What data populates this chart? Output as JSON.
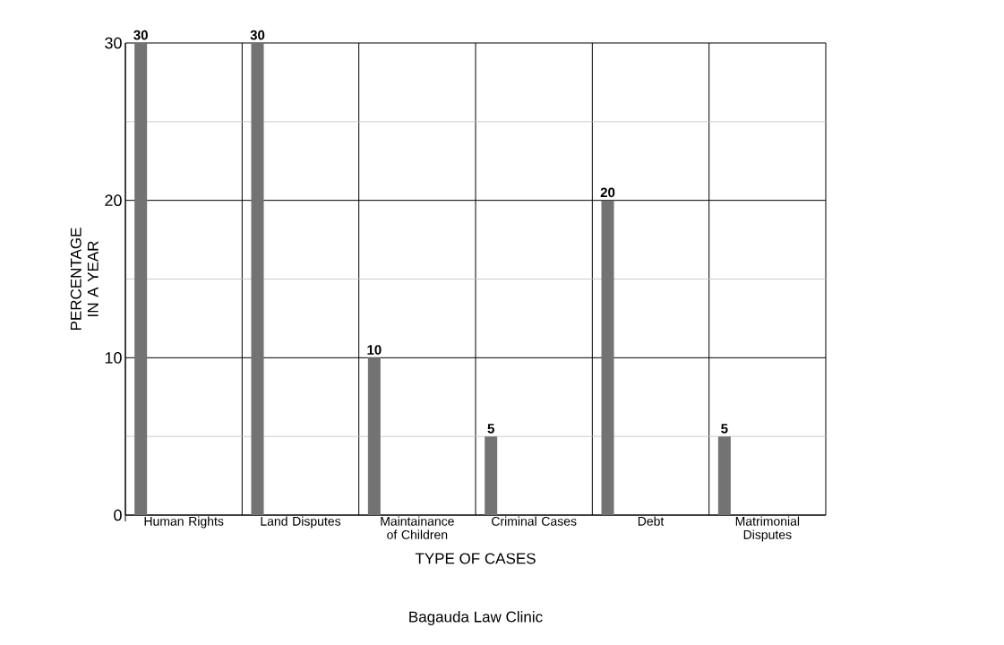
{
  "chart_data": {
    "type": "bar",
    "xlabel": "TYPE OF CASES",
    "ylabel": "PERCENTAGE IN A YEAR",
    "categories": [
      "Human Rights",
      "Land Disputes",
      "Maintainance of Children",
      "Criminal Cases",
      "Debt",
      "Matrimonial Disputes"
    ],
    "values": [
      30,
      30,
      10,
      5,
      20,
      5
    ],
    "color": "#737373",
    "ylim": [
      0,
      30
    ],
    "yticks": [
      0,
      10,
      20,
      30
    ],
    "grid": true,
    "data_labels": true,
    "annotations": [
      "Bagauda Law Clinic"
    ]
  }
}
